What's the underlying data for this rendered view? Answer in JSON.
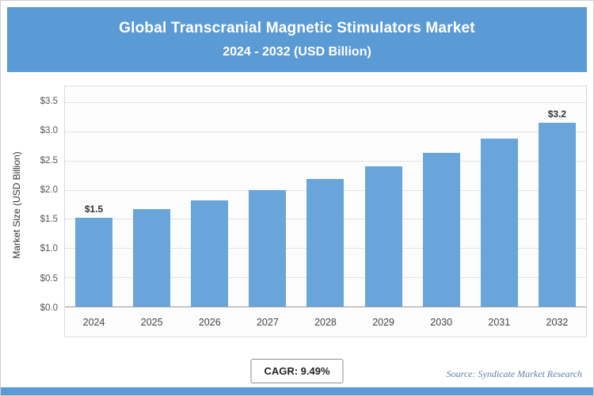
{
  "header": {
    "title_line1": "Global Transcranial Magnetic Stimulators Market",
    "title_line2": "2024 - 2032 (USD Billion)",
    "background_color": "#5B9BD5",
    "text_color": "#ffffff"
  },
  "chart_data": {
    "type": "bar",
    "title": "Global Transcranial Magnetic Stimulators Market 2024 - 2032 (USD Billion)",
    "categories": [
      "2024",
      "2025",
      "2026",
      "2027",
      "2028",
      "2029",
      "2030",
      "2031",
      "2032"
    ],
    "values": [
      1.52,
      1.67,
      1.82,
      2.0,
      2.19,
      2.4,
      2.63,
      2.87,
      3.15
    ],
    "bar_labels": [
      "$1.5",
      "",
      "",
      "",
      "",
      "",
      "",
      "",
      "$3.2"
    ],
    "xlabel": "",
    "ylabel": "Market Size (USD Billion)",
    "ylim": [
      0,
      3.5
    ],
    "ytick_values": [
      0,
      0.5,
      1,
      1.5,
      2,
      2.5,
      3,
      3.5
    ],
    "ytick_labels": [
      "$0.0",
      "$0.5",
      "$1.0",
      "$1.5",
      "$2.0",
      "$2.5",
      "$3.0",
      "$3.5"
    ],
    "grid": true,
    "legend": false,
    "bar_color": "#69A5DB"
  },
  "footer": {
    "cagr_label": "CAGR: 9.49%",
    "source": "Source: Syndicate Market Research"
  }
}
